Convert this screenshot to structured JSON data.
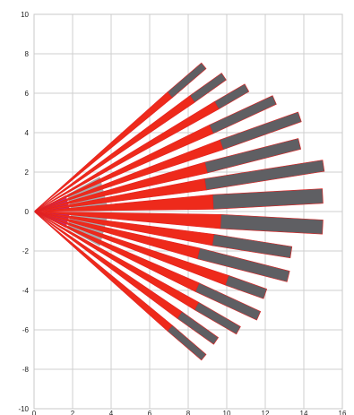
{
  "chart_data": {
    "type": "polar-wedge",
    "title": "",
    "xlabel": "",
    "ylabel": "",
    "xlim": [
      0,
      16
    ],
    "ylim": [
      -10,
      10
    ],
    "grid": true,
    "x_ticks": [
      "0",
      "2",
      "4",
      "6",
      "8",
      "10",
      "12",
      "14",
      "16"
    ],
    "y_ticks": [
      "10",
      "8",
      "6",
      "4",
      "2",
      "0",
      "-2",
      "-4",
      "-6",
      "-8",
      "-10"
    ],
    "colors": {
      "inner_triangle": "#c0308f",
      "inner_gray": "#a9a9a9",
      "red": "#ee2a1b",
      "dark": "#5f5f63",
      "edge": "#e02020",
      "outline": "#ffffff"
    },
    "inner_wedges": [
      {
        "angle_start": 2,
        "angle_end": 28,
        "inner_radius": 0,
        "outer_radius": 1.9,
        "color": "inner_triangle"
      },
      {
        "angle_start": -28,
        "angle_end": -2,
        "inner_radius": 0,
        "outer_radius": 1.9,
        "color": "inner_triangle"
      },
      {
        "angle_start": 2,
        "angle_end": 28,
        "inner_radius": 1.9,
        "outer_radius": 3.9,
        "color": "inner_gray"
      },
      {
        "angle_start": -28,
        "angle_end": -2,
        "inner_radius": 1.9,
        "outer_radius": 3.9,
        "color": "inner_gray"
      }
    ],
    "rays": [
      {
        "angle": 40.0,
        "red_end": 9.2,
        "total_end": 11.5,
        "half_width": 1.9
      },
      {
        "angle": 34.8,
        "red_end": 10.0,
        "total_end": 12.0,
        "half_width": 2.1
      },
      {
        "angle": 29.6,
        "red_end": 10.9,
        "total_end": 12.7,
        "half_width": 2.2
      },
      {
        "angle": 24.4,
        "red_end": 10.1,
        "total_end": 13.7,
        "half_width": 2.4
      },
      {
        "angle": 19.2,
        "red_end": 10.3,
        "total_end": 14.6,
        "half_width": 2.6
      },
      {
        "angle": 14.0,
        "red_end": 9.2,
        "total_end": 14.2,
        "half_width": 2.8
      },
      {
        "angle": 8.8,
        "red_end": 9.0,
        "total_end": 15.2,
        "half_width": 2.9
      },
      {
        "angle": 3.0,
        "red_end": 9.3,
        "total_end": 15.0,
        "half_width": 3.7
      },
      {
        "angle": -3.0,
        "red_end": 9.7,
        "total_end": 15.0,
        "half_width": 3.6
      },
      {
        "angle": -8.8,
        "red_end": 9.4,
        "total_end": 13.5,
        "half_width": 2.9
      },
      {
        "angle": -14.0,
        "red_end": 8.8,
        "total_end": 13.6,
        "half_width": 2.8
      },
      {
        "angle": -19.2,
        "red_end": 10.6,
        "total_end": 12.7,
        "half_width": 2.6
      },
      {
        "angle": -24.4,
        "red_end": 9.3,
        "total_end": 12.8,
        "half_width": 2.4
      },
      {
        "angle": -29.6,
        "red_end": 9.7,
        "total_end": 12.2,
        "half_width": 2.2
      },
      {
        "angle": -34.8,
        "red_end": 9.2,
        "total_end": 11.5,
        "half_width": 2.1
      },
      {
        "angle": -40.0,
        "red_end": 9.2,
        "total_end": 11.5,
        "half_width": 1.9
      }
    ]
  }
}
